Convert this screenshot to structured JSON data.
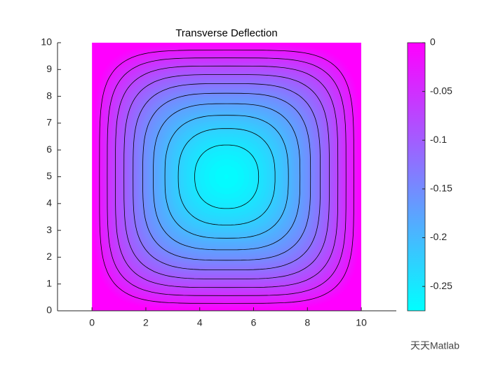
{
  "chart_data": {
    "type": "contour",
    "title": "Transverse Deflection",
    "xlim": [
      -1.28,
      11.3
    ],
    "ylim": [
      0,
      10
    ],
    "xticks": [
      0,
      2,
      4,
      6,
      8,
      10
    ],
    "yticks": [
      0,
      1,
      2,
      3,
      4,
      5,
      6,
      7,
      8,
      9,
      10
    ],
    "domain_x": [
      0,
      10
    ],
    "domain_y": [
      0,
      10
    ],
    "colormap": "cool",
    "line_color": "#000000",
    "levels": [
      -0.025,
      -0.05,
      -0.075,
      -0.1,
      -0.125,
      -0.15,
      -0.175,
      -0.2,
      -0.225,
      -0.25
    ],
    "colorbar": {
      "clim": [
        -0.275,
        0
      ],
      "ticks": [
        0,
        -0.05,
        -0.1,
        -0.15,
        -0.2,
        -0.25
      ]
    },
    "watermark": "天天Matlab"
  }
}
